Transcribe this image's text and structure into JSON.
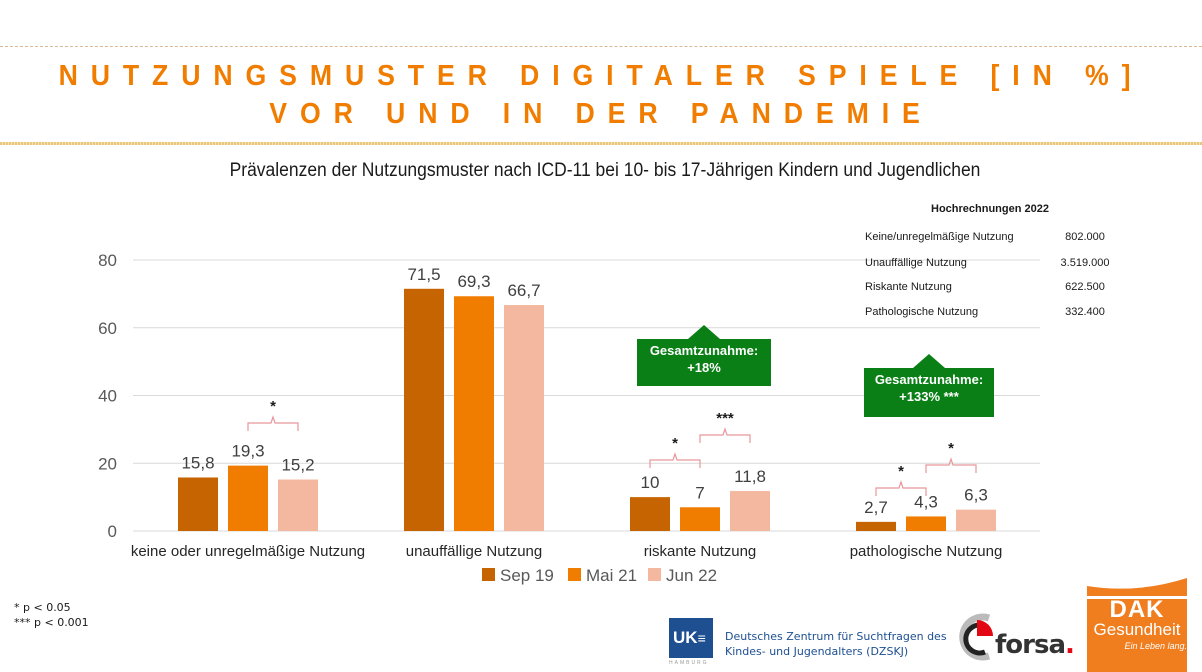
{
  "header": {
    "title_line1": "NUTZUNGSMUSTER DIGITALER SPIELE [IN %]",
    "title_line2": "VOR UND IN DER PANDEMIE",
    "subtitle": "Prävalenzen der Nutzungsmuster nach ICD-11 bei 10- bis 17-Jährigen Kindern und Jugendlichen"
  },
  "colors": {
    "title": "#f07d00",
    "sep19": "#c56400",
    "mai21": "#f07d00",
    "jun22": "#f4b8a0",
    "callout": "#0a7f16",
    "bracket": "#e8969b"
  },
  "chart_data": {
    "type": "bar",
    "title": "Prävalenzen der Nutzungsmuster nach ICD-11 bei 10- bis 17-Jährigen Kindern und Jugendlichen",
    "xlabel": "",
    "ylabel": "",
    "ylim": [
      0,
      80
    ],
    "yticks": [
      "0",
      "20",
      "40",
      "60",
      "80"
    ],
    "grid": true,
    "legend_position": "bottom",
    "categories": [
      "keine oder  unregelmäßige Nutzung",
      "unauffällige Nutzung",
      "riskante Nutzung",
      "pathologische Nutzung"
    ],
    "series": [
      {
        "name": "Sep 19",
        "values": [
          15.8,
          71.5,
          10,
          2.7
        ],
        "labels": [
          "15,8",
          "71,5",
          "10",
          "2,7"
        ]
      },
      {
        "name": "Mai 21",
        "values": [
          19.3,
          69.3,
          7,
          4.3
        ],
        "labels": [
          "19,3",
          "69,3",
          "7",
          "4,3"
        ]
      },
      {
        "name": "Jun 22",
        "values": [
          15.2,
          66.7,
          11.8,
          6.3
        ],
        "labels": [
          "15,2",
          "66,7",
          "11,8",
          "6,3"
        ]
      }
    ],
    "significance": [
      {
        "category": 0,
        "from": 1,
        "to": 2,
        "mark": "*"
      },
      {
        "category": 2,
        "from": 0,
        "to": 1,
        "mark": "*"
      },
      {
        "category": 2,
        "from": 1,
        "to": 2,
        "mark": "***"
      },
      {
        "category": 3,
        "from": 0,
        "to": 1,
        "mark": "*"
      },
      {
        "category": 3,
        "from": 1,
        "to": 2,
        "mark": "*"
      }
    ],
    "annotations": [
      {
        "category": 2,
        "line1": "Gesamtzunahme:",
        "line2": "+18%"
      },
      {
        "category": 3,
        "line1": "Gesamtzunahme:",
        "line2": "+133% ***"
      }
    ]
  },
  "projections": {
    "title": "Hochrechnungen 2022",
    "rows": [
      {
        "label": "Keine/unregelmäßige Nutzung",
        "value": "802.000"
      },
      {
        "label": "Unauffällige Nutzung",
        "value": "3.519.000"
      },
      {
        "label": "Riskante Nutzung",
        "value": "622.500"
      },
      {
        "label": "Pathologische Nutzung",
        "value": "332.400"
      }
    ]
  },
  "footnotes": {
    "p005": "*    p < 0.05",
    "p0001": "*** p < 0.001"
  },
  "logos": {
    "uke": "UK",
    "uke_sub": "HAMBURG",
    "dzskj_line1": "Deutsches Zentrum für Suchtfragen des",
    "dzskj_line2": "Kindes- und Jugendalters (DZSKJ)",
    "forsa": "forsa",
    "forsa_dot": ".",
    "dak_brand": "DAK",
    "dak_name": "Gesundheit",
    "dak_slogan": "Ein Leben lang."
  }
}
